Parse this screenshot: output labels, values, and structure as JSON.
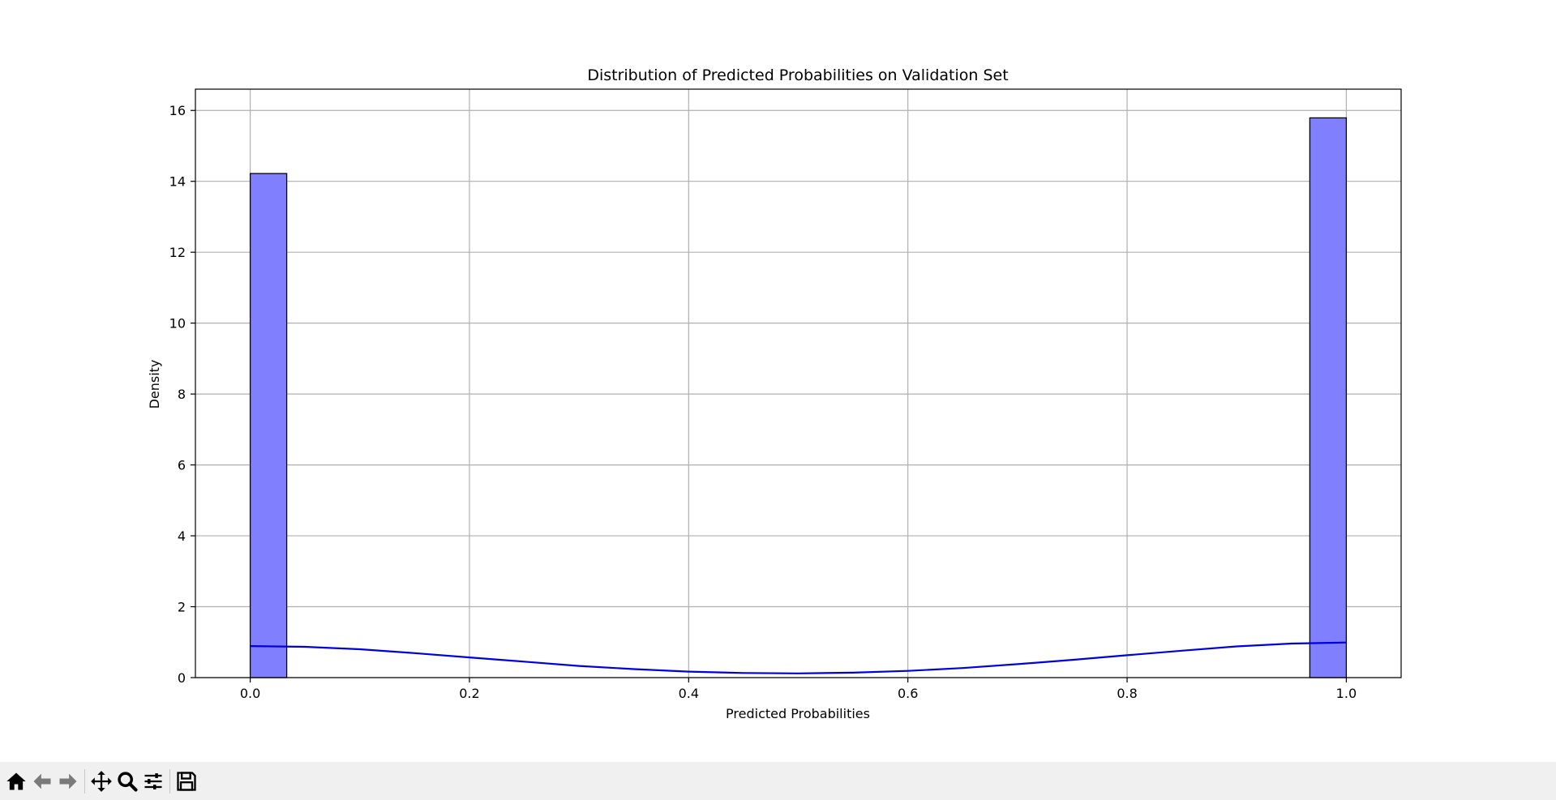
{
  "window": {
    "toolbar_icons": [
      "home-icon",
      "back-icon",
      "forward-icon",
      "pan-icon",
      "zoom-icon",
      "configure-subplots-icon",
      "save-icon"
    ]
  },
  "colors": {
    "bar_fill": "#8080ff",
    "bar_edge": "#000000",
    "kde_line": "#0000dd",
    "grid": "#b0b0b0",
    "toolbar_bg": "#f0f0f0"
  },
  "chart_data": {
    "type": "bar",
    "title": "Distribution of Predicted Probabilities on Validation Set",
    "xlabel": "Predicted Probabilities",
    "ylabel": "Density",
    "xlim": [
      -0.05,
      1.05
    ],
    "ylim": [
      0,
      16.6
    ],
    "xticks": [
      0.0,
      0.2,
      0.4,
      0.6,
      0.8,
      1.0
    ],
    "xtick_labels": [
      "0.0",
      "0.2",
      "0.4",
      "0.6",
      "0.8",
      "1.0"
    ],
    "yticks": [
      0,
      2,
      4,
      6,
      8,
      10,
      12,
      14,
      16
    ],
    "ytick_labels": [
      "0",
      "2",
      "4",
      "6",
      "8",
      "10",
      "12",
      "14",
      "16"
    ],
    "grid": true,
    "bins": [
      {
        "x0": 0.0,
        "x1": 0.0333,
        "density": 14.22
      },
      {
        "x0": 0.9667,
        "x1": 1.0,
        "density": 15.79
      }
    ],
    "kde": {
      "x": [
        0.0,
        0.05,
        0.1,
        0.15,
        0.2,
        0.25,
        0.3,
        0.35,
        0.4,
        0.45,
        0.5,
        0.55,
        0.6,
        0.65,
        0.7,
        0.75,
        0.8,
        0.85,
        0.9,
        0.95,
        1.0
      ],
      "y": [
        0.89,
        0.87,
        0.8,
        0.69,
        0.57,
        0.45,
        0.33,
        0.24,
        0.17,
        0.13,
        0.12,
        0.14,
        0.19,
        0.27,
        0.38,
        0.5,
        0.63,
        0.76,
        0.88,
        0.96,
        0.99
      ]
    }
  }
}
